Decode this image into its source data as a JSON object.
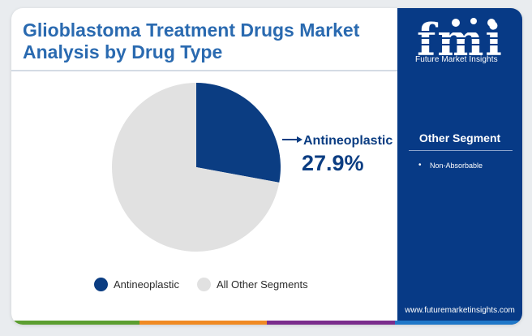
{
  "title": "Glioblastoma Treatment Drugs Market Analysis by Drug Type",
  "logo": {
    "text": "fmi",
    "tagline": "Future Market Insights"
  },
  "sidebar": {
    "segment_title": "Other Segment",
    "segment_items": [
      "Non-Absorbable"
    ],
    "website": "www.futuremarketinsights.com"
  },
  "colors": {
    "primary": "#073a86",
    "slice_highlight": "#0b3d82",
    "slice_other": "#e1e1e1",
    "title": "#2a6ab0",
    "bottom_bar": [
      "#5c9e31",
      "#f08a24",
      "#7a2d8c",
      "#1f77c8"
    ]
  },
  "chart_data": {
    "type": "pie",
    "slices": [
      {
        "label": "Antineoplastic",
        "value": 27.9,
        "display": "27.9%",
        "color": "#0b3d82"
      },
      {
        "label": "All Other Segments",
        "value": 72.1,
        "color": "#e1e1e1"
      }
    ],
    "highlight": {
      "label": "Antineoplastic",
      "value_text": "27.9%"
    },
    "legend": [
      "Antineoplastic",
      "All Other Segments"
    ],
    "legend_position": "bottom"
  }
}
